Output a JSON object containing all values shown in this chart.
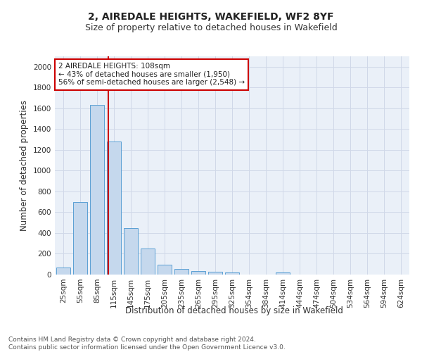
{
  "title": "2, AIREDALE HEIGHTS, WAKEFIELD, WF2 8YF",
  "subtitle": "Size of property relative to detached houses in Wakefield",
  "xlabel": "Distribution of detached houses by size in Wakefield",
  "ylabel": "Number of detached properties",
  "bar_labels": [
    "25sqm",
    "55sqm",
    "85sqm",
    "115sqm",
    "145sqm",
    "175sqm",
    "205sqm",
    "235sqm",
    "265sqm",
    "295sqm",
    "325sqm",
    "354sqm",
    "384sqm",
    "414sqm",
    "444sqm",
    "474sqm",
    "504sqm",
    "534sqm",
    "564sqm",
    "594sqm",
    "624sqm"
  ],
  "bar_values": [
    68,
    700,
    1630,
    1280,
    445,
    252,
    95,
    52,
    35,
    28,
    18,
    0,
    0,
    20,
    0,
    0,
    0,
    0,
    0,
    0,
    0
  ],
  "bar_color": "#c5d8ed",
  "bar_edge_color": "#5a9fd4",
  "vline_x": 2.65,
  "vline_color": "#cc0000",
  "annotation_text": "2 AIREDALE HEIGHTS: 108sqm\n← 43% of detached houses are smaller (1,950)\n56% of semi-detached houses are larger (2,548) →",
  "annotation_box_color": "#ffffff",
  "annotation_box_edge": "#cc0000",
  "ylim": [
    0,
    2100
  ],
  "yticks": [
    0,
    200,
    400,
    600,
    800,
    1000,
    1200,
    1400,
    1600,
    1800,
    2000
  ],
  "grid_color": "#d0d8e8",
  "background_color": "#eaf0f8",
  "footer_text": "Contains HM Land Registry data © Crown copyright and database right 2024.\nContains public sector information licensed under the Open Government Licence v3.0.",
  "title_fontsize": 10,
  "subtitle_fontsize": 9,
  "axis_label_fontsize": 8.5,
  "tick_fontsize": 7.5,
  "footer_fontsize": 6.5,
  "annotation_fontsize": 7.5
}
